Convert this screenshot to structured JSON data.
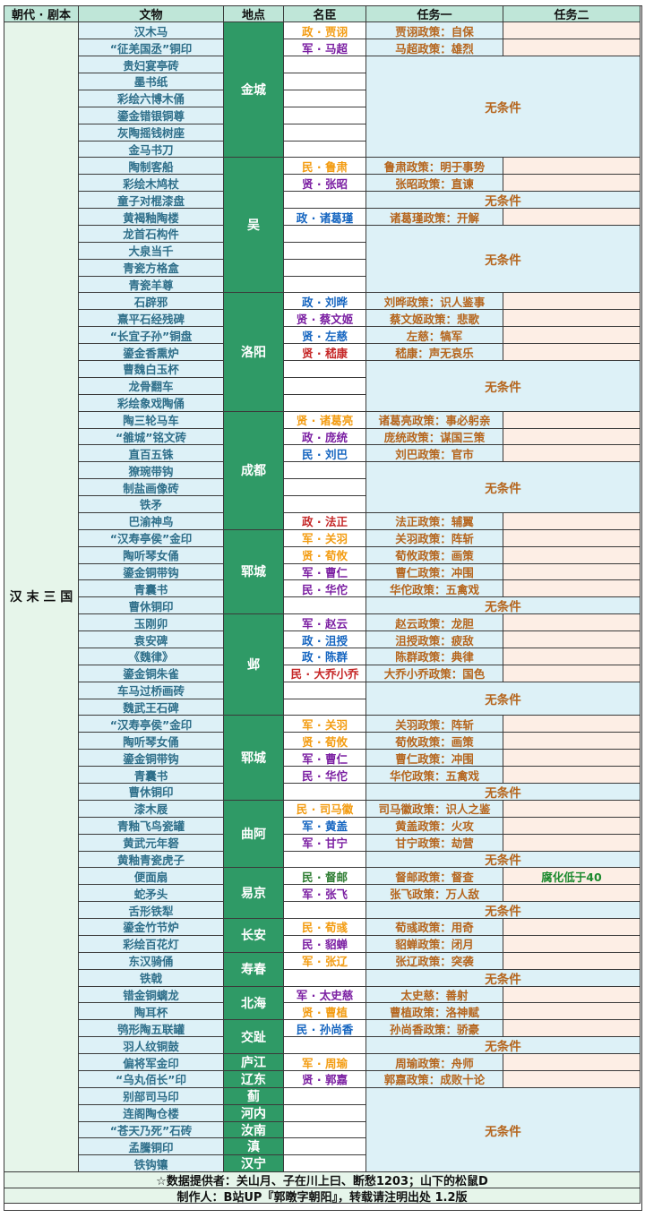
{
  "headers": [
    "朝代 · 剧本",
    "文物",
    "地点",
    "名臣",
    "任务一",
    "任务二"
  ],
  "era": "汉\n末\n三\n国",
  "no_condition": "无条件",
  "colors": {
    "军": "#c62828",
    "政": "#1565c0",
    "民": "#2e7d32",
    "贤": "#7b1fa2",
    "orange": "#f39c12",
    "no_condition": "#b5651d",
    "green_task": "#1c8a2e"
  },
  "relics": [
    "汉木马",
    "“征羌国丞”铜印",
    "贵妇宴亭砖",
    "墨书纸",
    "彩绘六博木俑",
    "鎏金错银铜尊",
    "灰陶摇钱树座",
    "金马书刀",
    "陶制客船",
    "彩绘木鸠杖",
    "童子对棍漆盘",
    "黄褐釉陶楼",
    "龙首石构件",
    "大泉当千",
    "青瓷方格盒",
    "青瓷羊尊",
    "石辟邪",
    "熹平石经残碑",
    "“长宜子孙”铜盘",
    "鎏金香熏炉",
    "曹魏白玉杯",
    "龙骨翻车",
    "彩绘象戏陶俑",
    "陶三轮马车",
    "“雒城”铭文砖",
    "直百五铢",
    "獠琬带钩",
    "制盐画像砖",
    "铁矛",
    "巴渝神鸟",
    "“汉寿亭侯”金印",
    "陶听琴女俑",
    "鎏金铜带钩",
    "青囊书",
    "曹休铜印",
    "玉刚卯",
    "袁安碑",
    "《魏律》",
    "鎏金铜朱雀",
    "车马过桥画砖",
    "魏武王石碑",
    "“汉寿亭侯”金印",
    "陶听琴女俑",
    "鎏金铜带钩",
    "青囊书",
    "曹休铜印",
    "漆木屐",
    "青釉飞鸟瓷罐",
    "黄武元年砮",
    "黄釉青瓷虎子",
    "便面扇",
    "蛇矛头",
    "舌形铁犁",
    "鎏金竹节炉",
    "彩绘百花灯",
    "东汉骑俑",
    "铁戟",
    "错金铜螭龙",
    "陶耳杯",
    "鸮形陶五联罐",
    "羽人纹铜鼓",
    "偏将军金印",
    "“乌丸佰长”印",
    "别部司马印",
    "连阁陶仓楼",
    "“苍天乃死”石砖",
    "孟騰铜印",
    "铁钩镶"
  ],
  "locations": [
    "金城",
    "吴",
    "洛阳",
    "成都",
    "郓城",
    "邺",
    "郓城",
    "曲阿",
    "易京",
    "长安",
    "寿春",
    "北海",
    "交趾",
    "庐江",
    "辽东",
    "蓟",
    "河内",
    "汝南",
    "滇",
    "汉宁"
  ],
  "ministers": [
    {
      "row": 0,
      "text": "政 · 贾诩",
      "color": "#f39c12"
    },
    {
      "row": 1,
      "text": "军 · 马超",
      "color": "#7b1fa2"
    },
    {
      "row": 8,
      "text": "民 · 鲁肃",
      "color": "#f39c12"
    },
    {
      "row": 9,
      "text": "贤 · 张昭",
      "color": "#7b1fa2"
    },
    {
      "row": 11,
      "text": "政 · 诸葛瑾",
      "color": "#1565c0"
    },
    {
      "row": 16,
      "text": "政 · 刘晔",
      "color": "#1565c0"
    },
    {
      "row": 17,
      "text": "贤 · 蔡文姬",
      "color": "#7b1fa2"
    },
    {
      "row": 18,
      "text": "贤 · 左慈",
      "color": "#1565c0"
    },
    {
      "row": 19,
      "text": "贤 · 嵇康",
      "color": "#c62828"
    },
    {
      "row": 23,
      "text": "贤 · 诸葛亮",
      "color": "#f39c12"
    },
    {
      "row": 24,
      "text": "政 · 庞统",
      "color": "#7b1fa2"
    },
    {
      "row": 25,
      "text": "民 · 刘巴",
      "color": "#1565c0"
    },
    {
      "row": 29,
      "text": "政 · 法正",
      "color": "#c62828"
    },
    {
      "row": 30,
      "text": "军 · 关羽",
      "color": "#f39c12"
    },
    {
      "row": 31,
      "text": "贤 · 荀攸",
      "color": "#f39c12"
    },
    {
      "row": 32,
      "text": "军 · 曹仁",
      "color": "#7b1fa2"
    },
    {
      "row": 33,
      "text": "民 · 华佗",
      "color": "#7b1fa2"
    },
    {
      "row": 35,
      "text": "军 · 赵云",
      "color": "#7b1fa2"
    },
    {
      "row": 36,
      "text": "政 · 沮授",
      "color": "#1565c0"
    },
    {
      "row": 37,
      "text": "政 · 陈群",
      "color": "#1565c0"
    },
    {
      "row": 38,
      "text": "民 · 大乔小乔",
      "color": "#c62828"
    },
    {
      "row": 41,
      "text": "军 · 关羽",
      "color": "#f39c12"
    },
    {
      "row": 42,
      "text": "贤 · 荀攸",
      "color": "#f39c12"
    },
    {
      "row": 43,
      "text": "军 · 曹仁",
      "color": "#7b1fa2"
    },
    {
      "row": 44,
      "text": "民 · 华佗",
      "color": "#7b1fa2"
    },
    {
      "row": 46,
      "text": "民 · 司马徽",
      "color": "#f39c12"
    },
    {
      "row": 47,
      "text": "军 · 黄盖",
      "color": "#1565c0"
    },
    {
      "row": 48,
      "text": "军 · 甘宁",
      "color": "#7b1fa2"
    },
    {
      "row": 50,
      "text": "民 · 督邮",
      "color": "#2e7d32"
    },
    {
      "row": 51,
      "text": "军 · 张飞",
      "color": "#7b1fa2"
    },
    {
      "row": 53,
      "text": "民 · 荀彧",
      "color": "#f39c12"
    },
    {
      "row": 54,
      "text": "民 · 貂蝉",
      "color": "#7b1fa2"
    },
    {
      "row": 55,
      "text": "军 · 张辽",
      "color": "#f39c12"
    },
    {
      "row": 57,
      "text": "军 · 太史慈",
      "color": "#7b1fa2"
    },
    {
      "row": 58,
      "text": "贤 · 曹植",
      "color": "#f39c12"
    },
    {
      "row": 59,
      "text": "民 · 孙尚香",
      "color": "#1565c0"
    },
    {
      "row": 61,
      "text": "军 · 周瑜",
      "color": "#f39c12"
    },
    {
      "row": 62,
      "text": "贤 · 郭嘉",
      "color": "#7b1fa2"
    }
  ],
  "task1": [
    {
      "row": 0,
      "text": "贾诩政策：自保"
    },
    {
      "row": 1,
      "text": "马超政策：雄烈"
    },
    {
      "row": 8,
      "text": "鲁肃政策：明于事势"
    },
    {
      "row": 9,
      "text": "张昭政策：直谏"
    },
    {
      "row": 11,
      "text": "诸葛瑾政策：开解"
    },
    {
      "row": 16,
      "text": "刘晔政策：识人鉴事"
    },
    {
      "row": 17,
      "text": "蔡文姬政策：悲歌"
    },
    {
      "row": 18,
      "text": "左慈：犒军"
    },
    {
      "row": 19,
      "text": "嵇康：声无哀乐"
    },
    {
      "row": 23,
      "text": "诸葛亮政策：事必躬亲"
    },
    {
      "row": 24,
      "text": "庞统政策：谋国三策"
    },
    {
      "row": 25,
      "text": "刘巴政策：官市"
    },
    {
      "row": 29,
      "text": "法正政策：辅翼"
    },
    {
      "row": 30,
      "text": "关羽政策：阵斩"
    },
    {
      "row": 31,
      "text": "荀攸政策：画策"
    },
    {
      "row": 32,
      "text": "曹仁政策：冲围"
    },
    {
      "row": 33,
      "text": "华佗政策：五禽戏"
    },
    {
      "row": 35,
      "text": "赵云政策：龙胆"
    },
    {
      "row": 36,
      "text": "沮授政策：疲敌"
    },
    {
      "row": 37,
      "text": "陈群政策：典律"
    },
    {
      "row": 38,
      "text": "大乔小乔政策：国色"
    },
    {
      "row": 41,
      "text": "关羽政策：阵斩"
    },
    {
      "row": 42,
      "text": "荀攸政策：画策"
    },
    {
      "row": 43,
      "text": "曹仁政策：冲围"
    },
    {
      "row": 44,
      "text": "华佗政策：五禽戏"
    },
    {
      "row": 46,
      "text": "司马徽政策：识人之鉴"
    },
    {
      "row": 47,
      "text": "黄盖政策：火攻"
    },
    {
      "row": 48,
      "text": "甘宁政策：劫营"
    },
    {
      "row": 50,
      "text": "督邮政策：督查"
    },
    {
      "row": 51,
      "text": "张飞政策：万人敌"
    },
    {
      "row": 53,
      "text": "荀彧政策：用奇"
    },
    {
      "row": 54,
      "text": "貂蝉政策：闭月"
    },
    {
      "row": 55,
      "text": "张辽政策：突袭"
    },
    {
      "row": 57,
      "text": "太史慈：善射"
    },
    {
      "row": 58,
      "text": "曹植政策：洛神赋"
    },
    {
      "row": 59,
      "text": "孙尚香政策：骄豪"
    },
    {
      "row": 61,
      "text": "周瑜政策：舟师"
    },
    {
      "row": 62,
      "text": "郭嘉政策：成败十论"
    }
  ],
  "task2": [
    {
      "row": 50,
      "text": "腐化低于40"
    }
  ],
  "footer": {
    "credits": "☆数据提供者：关山月、子在川上曰、断愁1203；山下的松鼠D",
    "maker": "制作人：B站UP『郭暾字朝阳』，转载请注明出处 1.2版"
  }
}
